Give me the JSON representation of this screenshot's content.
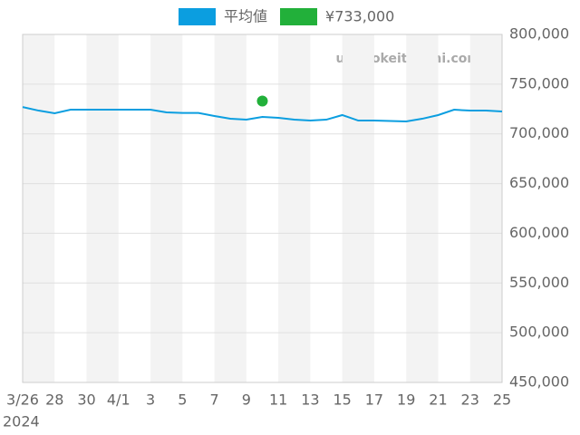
{
  "chart_data": {
    "type": "line",
    "categories": [
      "3/26",
      null,
      "28",
      null,
      "30",
      null,
      "4/1",
      null,
      "3",
      null,
      "5",
      null,
      "7",
      null,
      "9",
      null,
      "11",
      null,
      "13",
      null,
      "15",
      null,
      "17",
      null,
      "19",
      null,
      "21",
      null,
      "23",
      null,
      "25"
    ],
    "x_year": "2024",
    "series": [
      {
        "name": "平均値",
        "color": "#0b9ee0",
        "type": "line",
        "values": [
          727000,
          723400,
          720700,
          724300,
          724300,
          724300,
          724300,
          724300,
          724300,
          721600,
          721000,
          721000,
          718000,
          715200,
          714300,
          717100,
          716100,
          714300,
          713400,
          714300,
          718900,
          713400,
          713400,
          713000,
          712500,
          715200,
          718900,
          724300,
          723400,
          723400,
          722500
        ]
      },
      {
        "name": "¥733,000",
        "color": "#22b03a",
        "type": "scatter",
        "values": [
          null,
          null,
          null,
          null,
          null,
          null,
          null,
          null,
          null,
          null,
          null,
          null,
          null,
          null,
          null,
          733000,
          null,
          null,
          null,
          null,
          null,
          null,
          null,
          null,
          null,
          null,
          null,
          null,
          null,
          null,
          null
        ]
      }
    ],
    "ylim": [
      450000,
      800000
    ],
    "yticks": [
      {
        "value": 450000,
        "label": "450,000"
      },
      {
        "value": 500000,
        "label": "500,000"
      },
      {
        "value": 550000,
        "label": "550,000"
      },
      {
        "value": 600000,
        "label": "600,000"
      },
      {
        "value": 650000,
        "label": "650,000"
      },
      {
        "value": 700000,
        "label": "700,000"
      },
      {
        "value": 750000,
        "label": "750,000"
      },
      {
        "value": 800000,
        "label": "800,000"
      }
    ],
    "grid": true,
    "watermark": "udedokeitoushi.com"
  }
}
